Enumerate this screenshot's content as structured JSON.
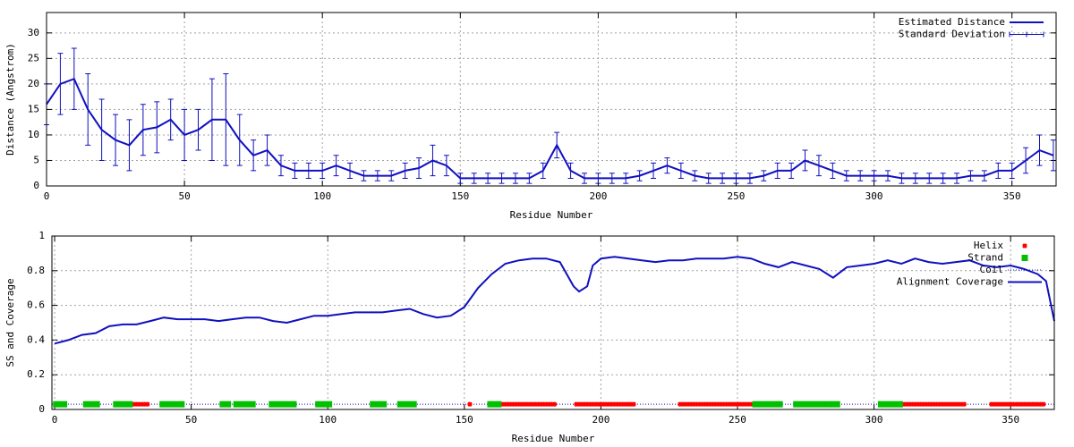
{
  "chart_data": [
    {
      "type": "line",
      "xlabel": "Residue Number",
      "ylabel": "Distance (Angstrom)",
      "xlim": [
        0,
        366
      ],
      "ylim": [
        0,
        34
      ],
      "xticks": [
        0,
        50,
        100,
        150,
        200,
        250,
        300,
        350
      ],
      "yticks": [
        0,
        5,
        10,
        15,
        20,
        25,
        30
      ],
      "grid": true,
      "legend": "top-right",
      "x": [
        0,
        5,
        10,
        15,
        20,
        25,
        30,
        35,
        40,
        45,
        50,
        55,
        60,
        65,
        70,
        75,
        80,
        85,
        90,
        95,
        100,
        105,
        110,
        115,
        120,
        125,
        130,
        135,
        140,
        145,
        150,
        155,
        160,
        165,
        170,
        175,
        180,
        185,
        190,
        195,
        200,
        205,
        210,
        215,
        220,
        225,
        230,
        235,
        240,
        245,
        250,
        255,
        260,
        265,
        270,
        275,
        280,
        285,
        290,
        295,
        300,
        305,
        310,
        315,
        320,
        325,
        330,
        335,
        340,
        345,
        350,
        355,
        360,
        365
      ],
      "series": [
        {
          "name": "Estimated Distance",
          "color": "#1010c0",
          "style": "line",
          "values": [
            16,
            20,
            21,
            15,
            11,
            9,
            8,
            11,
            11.5,
            13,
            10,
            11,
            13,
            13,
            9,
            6,
            7,
            4,
            3,
            3,
            3,
            4,
            3,
            2,
            2,
            2,
            3,
            3.5,
            5,
            4,
            1.5,
            1.5,
            1.5,
            1.5,
            1.5,
            1.5,
            3,
            8,
            3,
            1.5,
            1.5,
            1.5,
            1.5,
            2,
            3,
            4,
            3,
            2,
            1.5,
            1.5,
            1.5,
            1.5,
            2,
            3,
            3,
            5,
            4,
            3,
            2,
            2,
            2,
            2,
            1.5,
            1.5,
            1.5,
            1.5,
            1.5,
            2,
            2,
            3,
            3,
            5,
            7,
            6
          ]
        },
        {
          "name": "Standard Deviation",
          "color": "#1010c0",
          "style": "errorbars",
          "values": [
            4,
            6,
            6,
            7,
            6,
            5,
            5,
            5,
            5,
            4,
            5,
            4,
            8,
            9,
            5,
            3,
            3,
            2,
            1.5,
            1.5,
            1.5,
            2,
            1.5,
            1,
            1,
            1,
            1.5,
            2,
            3,
            2,
            1,
            1,
            1,
            1,
            1,
            1,
            1.5,
            2.5,
            1.5,
            1,
            1,
            1,
            1,
            1,
            1.5,
            1.5,
            1.5,
            1,
            1,
            1,
            1,
            1,
            1,
            1.5,
            1.5,
            2,
            2,
            1.5,
            1,
            1,
            1,
            1,
            1,
            1,
            1,
            1,
            1,
            1,
            1,
            1.5,
            1.5,
            2.5,
            3,
            3
          ]
        }
      ]
    },
    {
      "type": "line",
      "xlabel": "Residue Number",
      "ylabel": "SS and Coverage",
      "xlim": [
        -1,
        366
      ],
      "ylim": [
        0,
        1
      ],
      "xticks": [
        0,
        50,
        100,
        150,
        200,
        250,
        300,
        350
      ],
      "yticks": [
        0,
        0.2,
        0.4,
        0.6,
        0.8,
        1
      ],
      "grid": true,
      "legend": "top-right",
      "x": [
        0,
        5,
        10,
        15,
        20,
        25,
        30,
        35,
        40,
        45,
        50,
        55,
        60,
        65,
        70,
        75,
        80,
        85,
        90,
        95,
        100,
        105,
        110,
        115,
        120,
        125,
        130,
        135,
        140,
        145,
        150,
        155,
        160,
        165,
        170,
        175,
        180,
        185,
        190,
        192,
        195,
        197,
        200,
        205,
        210,
        215,
        220,
        225,
        230,
        235,
        240,
        245,
        250,
        255,
        260,
        265,
        270,
        275,
        280,
        285,
        290,
        295,
        300,
        305,
        310,
        315,
        320,
        325,
        330,
        335,
        340,
        345,
        350,
        355,
        360,
        363,
        366
      ],
      "series": [
        {
          "name": "Helix",
          "color": "#ff0000",
          "style": "points",
          "marker": "star",
          "level": 0.03,
          "ranges": [
            [
              29,
              34
            ],
            [
              152,
              152
            ],
            [
              164,
              183
            ],
            [
              191,
              212
            ],
            [
              229,
              255
            ],
            [
              309,
              333
            ],
            [
              343,
              362
            ]
          ]
        },
        {
          "name": "Strand",
          "color": "#00c000",
          "style": "points",
          "marker": "square",
          "level": 0.03,
          "ranges": [
            [
              0,
              4
            ],
            [
              11,
              16
            ],
            [
              22,
              28
            ],
            [
              39,
              47
            ],
            [
              61,
              64
            ],
            [
              66,
              73
            ],
            [
              79,
              88
            ],
            [
              96,
              101
            ],
            [
              116,
              121
            ],
            [
              126,
              132
            ],
            [
              159,
              163
            ],
            [
              256,
              266
            ],
            [
              271,
              284
            ],
            [
              285,
              287
            ],
            [
              302,
              310
            ]
          ]
        },
        {
          "name": "Coil",
          "color": "#1010c0",
          "style": "dotted",
          "level": 0.03
        },
        {
          "name": "Alignment Coverage",
          "color": "#1010c0",
          "style": "line",
          "values": [
            0.38,
            0.4,
            0.43,
            0.44,
            0.48,
            0.49,
            0.49,
            0.51,
            0.53,
            0.52,
            0.52,
            0.52,
            0.51,
            0.52,
            0.53,
            0.53,
            0.51,
            0.5,
            0.52,
            0.54,
            0.54,
            0.55,
            0.56,
            0.56,
            0.56,
            0.57,
            0.58,
            0.55,
            0.53,
            0.54,
            0.59,
            0.7,
            0.78,
            0.84,
            0.86,
            0.87,
            0.87,
            0.85,
            0.71,
            0.68,
            0.71,
            0.83,
            0.87,
            0.88,
            0.87,
            0.86,
            0.85,
            0.86,
            0.86,
            0.87,
            0.87,
            0.87,
            0.88,
            0.87,
            0.84,
            0.82,
            0.85,
            0.83,
            0.81,
            0.76,
            0.82,
            0.83,
            0.84,
            0.86,
            0.84,
            0.87,
            0.85,
            0.84,
            0.85,
            0.86,
            0.83,
            0.82,
            0.83,
            0.81,
            0.78,
            0.74,
            0.51
          ]
        }
      ]
    }
  ]
}
